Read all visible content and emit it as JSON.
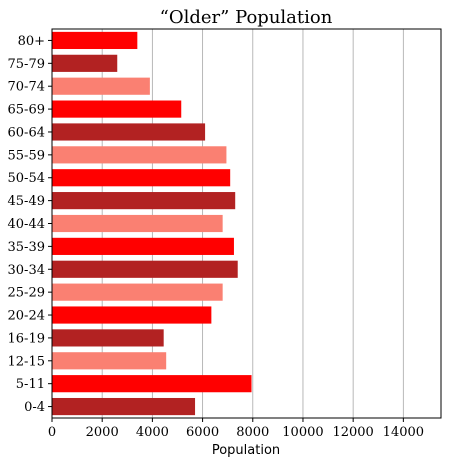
{
  "chart_data": {
    "type": "bar",
    "orientation": "horizontal",
    "title": "“Older” Population",
    "xlabel": "Population",
    "ylabel": "",
    "xlim": [
      0,
      15500
    ],
    "x_ticks": [
      0,
      2000,
      4000,
      6000,
      8000,
      10000,
      12000,
      14000
    ],
    "x_tick_labels": [
      "0",
      "2000",
      "4000",
      "6000",
      "8000",
      "10000",
      "12000",
      "14000"
    ],
    "grid": "vertical",
    "categories": [
      "80+",
      "75-79",
      "70-74",
      "65-69",
      "60-64",
      "55-59",
      "50-54",
      "45-49",
      "40-44",
      "35-39",
      "30-34",
      "25-29",
      "20-24",
      "16-19",
      "12-15",
      "5-11",
      "0-4"
    ],
    "values": [
      3400,
      2600,
      3900,
      5150,
      6100,
      6950,
      7100,
      7300,
      6800,
      7250,
      7400,
      6800,
      6350,
      4450,
      4550,
      7950,
      5700
    ],
    "bar_colors": [
      "#ff0000",
      "#b22222",
      "#fa8072",
      "#ff0000",
      "#b22222",
      "#fa8072",
      "#ff0000",
      "#b22222",
      "#fa8072",
      "#ff0000",
      "#b22222",
      "#fa8072",
      "#ff0000",
      "#b22222",
      "#fa8072",
      "#ff0000",
      "#b22222"
    ]
  }
}
